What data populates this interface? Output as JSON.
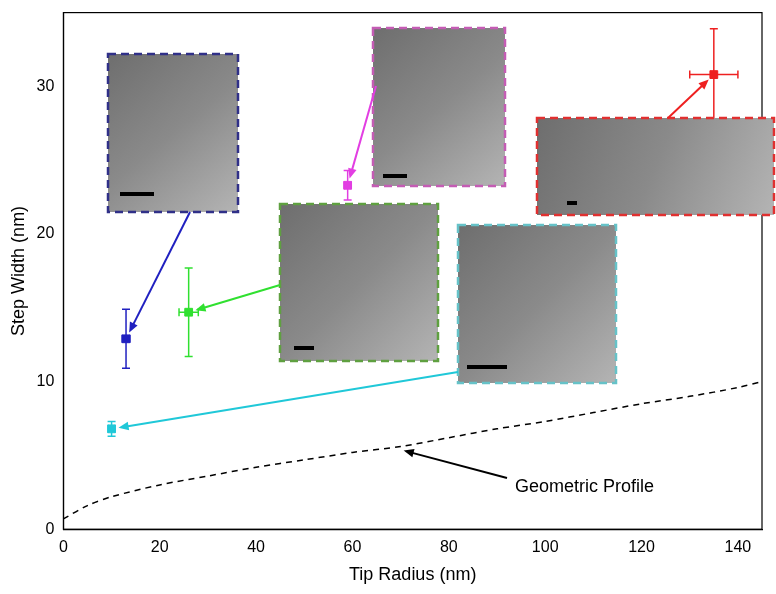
{
  "chart_data": {
    "type": "scatter",
    "x_label": "Tip Radius (nm)",
    "y_label": "Step Width (nm)",
    "xlim": [
      0,
      145
    ],
    "ylim": [
      0,
      35
    ],
    "xticks": [
      0,
      20,
      40,
      60,
      80,
      100,
      120,
      140
    ],
    "yticks": [
      0,
      10,
      20,
      30
    ],
    "grid": false,
    "series": [
      {
        "color": "#2020c0",
        "marker": "square",
        "x": [
          13
        ],
        "values": [
          12.9
        ],
        "x_err": [
          0.8
        ],
        "y_err": [
          2.0
        ]
      },
      {
        "color": "#30e030",
        "marker": "square",
        "x": [
          26
        ],
        "values": [
          14.7
        ],
        "x_err": [
          2.0
        ],
        "y_err": [
          3.0
        ]
      },
      {
        "color": "#e23ee2",
        "marker": "square",
        "x": [
          59
        ],
        "values": [
          23.3
        ],
        "x_err": [
          0.7
        ],
        "y_err": [
          1.0
        ]
      },
      {
        "color": "#ee2020",
        "marker": "square",
        "x": [
          135
        ],
        "values": [
          30.8
        ],
        "x_err": [
          5.0
        ],
        "y_err": [
          3.1
        ]
      },
      {
        "color": "#20c8d8",
        "marker": "square",
        "x": [
          10
        ],
        "values": [
          6.8
        ],
        "x_err": [
          0.7
        ],
        "y_err": [
          0.5
        ]
      },
      {
        "type": "line",
        "line_style": "dashed",
        "color": "#000000",
        "x": [
          0,
          5,
          10,
          20,
          30,
          40,
          50,
          60,
          70,
          80,
          90,
          100,
          110,
          120,
          130,
          140,
          145
        ],
        "values": [
          0.7,
          1.6,
          2.2,
          3.0,
          3.6,
          4.2,
          4.7,
          5.2,
          5.6,
          6.2,
          6.8,
          7.3,
          7.9,
          8.5,
          9.0,
          9.6,
          10.0
        ]
      }
    ],
    "annotations": [
      {
        "text": "Geometric Profile",
        "x": 70,
        "y": 5.6
      }
    ]
  }
}
